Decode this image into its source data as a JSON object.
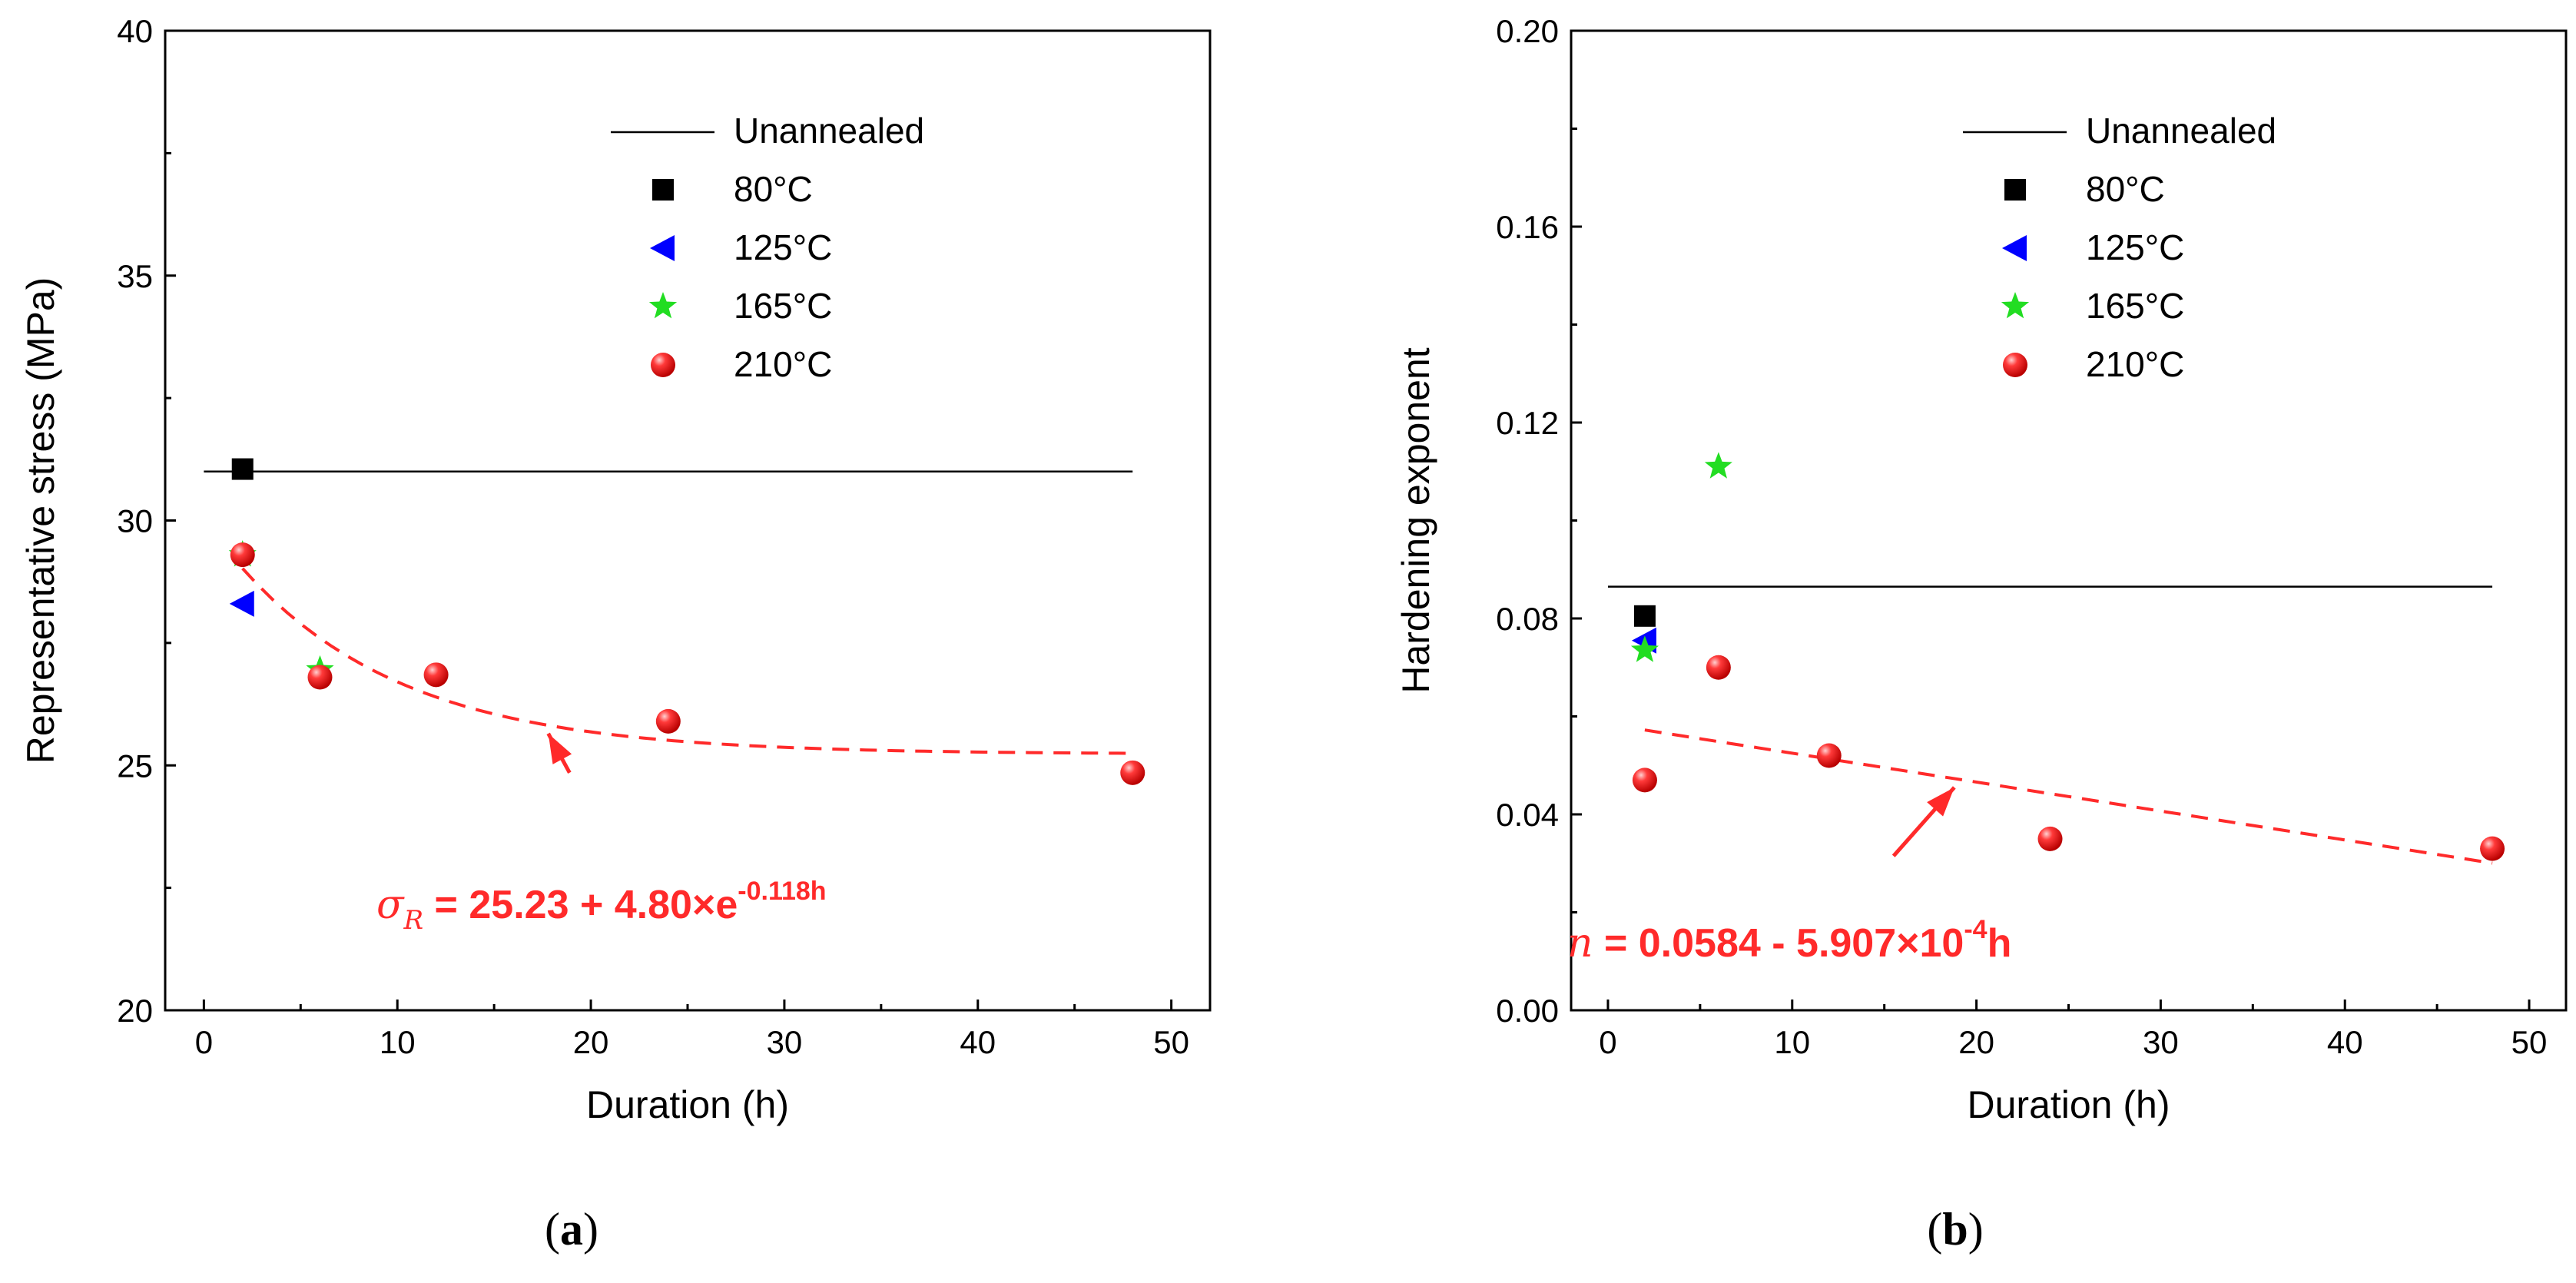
{
  "colors": {
    "unannealed": "#000000",
    "c80": "#000000",
    "c125": "#0000ff",
    "c165": "#22dd22",
    "c210": "#ff2a2a",
    "fit": "#ff2a2a",
    "axis": "#000000"
  },
  "chart_data": [
    {
      "type": "scatter",
      "panel_label": "a",
      "xlabel": "Duration (h)",
      "ylabel": "Representative stress (MPa)",
      "xlim": [
        -2,
        52
      ],
      "ylim": [
        20,
        40
      ],
      "x_ticks": [
        0,
        10,
        20,
        30,
        40,
        50
      ],
      "y_ticks": [
        20,
        25,
        30,
        35,
        40
      ],
      "grid": false,
      "legend_position": "top-right",
      "reference_line": {
        "name": "Unannealed",
        "y": 31.0,
        "x_range": [
          0,
          48
        ]
      },
      "series": [
        {
          "name": "80°C",
          "marker": "square",
          "x": [
            2
          ],
          "y": [
            31.05
          ]
        },
        {
          "name": "125°C",
          "marker": "triangle-left",
          "x": [
            2
          ],
          "y": [
            28.3
          ]
        },
        {
          "name": "165°C",
          "marker": "star",
          "x": [
            2,
            6
          ],
          "y": [
            29.3,
            26.95
          ]
        },
        {
          "name": "210°C",
          "marker": "sphere",
          "x": [
            2,
            6,
            12,
            24,
            48
          ],
          "y": [
            29.3,
            26.8,
            26.85,
            25.9,
            24.85
          ]
        }
      ],
      "fit": {
        "type": "exponential",
        "x_range": [
          2,
          48
        ],
        "a": 25.23,
        "b": 4.8,
        "k": -0.118,
        "label_parts": {
          "symbol": "σ",
          "subscript": "R",
          "body": " = 25.23 + 4.80×e",
          "exponent": "-0.118h"
        },
        "arrow": {
          "from": [
            18.9,
            24.85
          ],
          "to": [
            17.8,
            25.65
          ]
        }
      }
    },
    {
      "type": "scatter",
      "panel_label": "b",
      "xlabel": "Duration (h)",
      "ylabel": "Hardening exponent",
      "xlim": [
        -2,
        52
      ],
      "ylim": [
        0.0,
        0.2
      ],
      "x_ticks": [
        0,
        10,
        20,
        30,
        40,
        50
      ],
      "y_ticks": [
        0.0,
        0.04,
        0.08,
        0.12,
        0.16,
        0.2
      ],
      "y_tick_labels": [
        "0.00",
        "0.04",
        "0.08",
        "0.12",
        "0.16",
        "0.20"
      ],
      "grid": false,
      "legend_position": "top-right",
      "reference_line": {
        "name": "Unannealed",
        "y": 0.0865,
        "x_range": [
          0,
          48
        ]
      },
      "series": [
        {
          "name": "80°C",
          "marker": "square",
          "x": [
            2
          ],
          "y": [
            0.0805
          ]
        },
        {
          "name": "125°C",
          "marker": "triangle-left",
          "x": [
            2
          ],
          "y": [
            0.0755
          ]
        },
        {
          "name": "165°C",
          "marker": "star",
          "x": [
            2,
            6
          ],
          "y": [
            0.0735,
            0.111
          ]
        },
        {
          "name": "210°C",
          "marker": "sphere",
          "x": [
            2,
            6,
            12,
            24,
            48
          ],
          "y": [
            0.047,
            0.07,
            0.052,
            0.035,
            0.033
          ]
        }
      ],
      "fit": {
        "type": "linear",
        "x_range": [
          2,
          48
        ],
        "a": 0.0584,
        "b": -0.0005907,
        "label_parts": {
          "symbol": "n",
          "body": " = 0.0584 - 5.907×10",
          "exponent": "-4",
          "tail": "h"
        },
        "arrow": {
          "from": [
            15.5,
            0.0315
          ],
          "to": [
            18.8,
            0.0455
          ]
        }
      }
    }
  ]
}
